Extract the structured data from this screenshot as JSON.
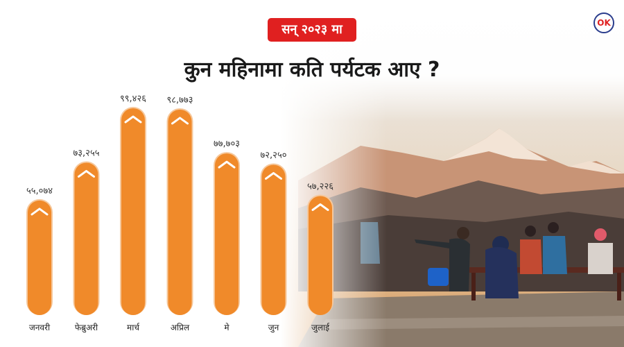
{
  "badge_text": "सन् २०२३ मा",
  "headline": "कुन महिनामा कति पर्यटक आए ?",
  "logo_text": "OK",
  "colors": {
    "bar": "#f08a2a",
    "bar_edge": "#ffffff",
    "badge": "#e02020"
  },
  "chart_data": {
    "type": "bar",
    "categories": [
      "जनवरी",
      "फेब्रुअरी",
      "मार्च",
      "अप्रिल",
      "मे",
      "जुन",
      "जुलाई"
    ],
    "values": [
      55074,
      73255,
      99426,
      98773,
      77703,
      72250,
      57226
    ],
    "value_labels": [
      "५५,०७४",
      "७३,२५५",
      "९९,४२६",
      "९८,७७३",
      "७७,७०३",
      "७२,२५०",
      "५७,२२६"
    ],
    "title": "कुन महिनामा कति पर्यटक आए ?",
    "xlabel": "",
    "ylabel": "",
    "ylim": [
      0,
      100000
    ],
    "grid": false,
    "legend": "none"
  }
}
